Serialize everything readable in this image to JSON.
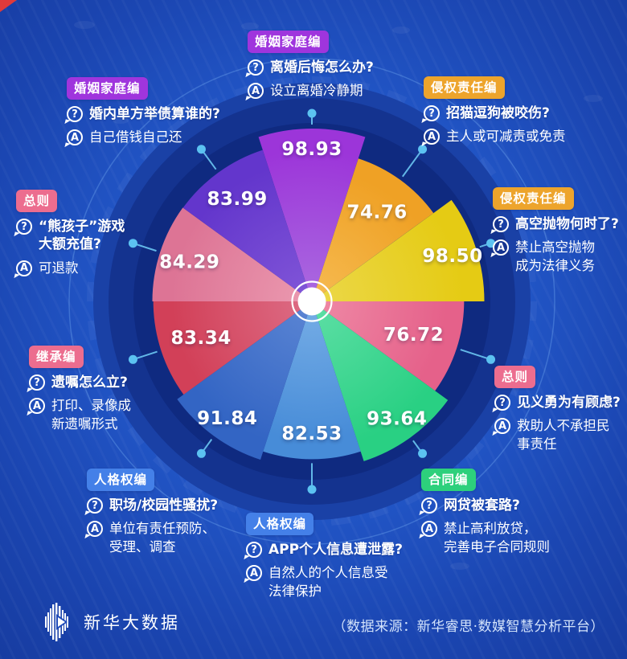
{
  "icons": {
    "question_glyph": "?",
    "answer_glyph": "A"
  },
  "footer": {
    "brand": "新华大数据",
    "source_note": "（数据来源：新华睿思·数媒智慧分析平台）"
  },
  "chart_data": {
    "type": "rose",
    "note": "Nightingale rose chart, 10 equal 36-degree sectors, radius proportional to sqrt(value), first sector centered at 12 o'clock, clockwise",
    "sectors": [
      {
        "value": 98.93,
        "category": "婚姻家庭编",
        "category_color": "#9f35dd",
        "question": "离婚后悔怎么办?",
        "answer": "设立离婚冷静期",
        "color": "#9c35d9",
        "color_inner": "#aa6be0"
      },
      {
        "value": 74.76,
        "category": "侵权责任编",
        "category_color": "#eda42c",
        "question": "招猫逗狗被咬伤?",
        "answer": "主人或可减责或免责",
        "color": "#efa125",
        "color_inner": "#f6bb52"
      },
      {
        "value": 98.5,
        "category": "侵权责任编",
        "category_color": "#eda42c",
        "question": "高空抛物何时了?",
        "answer": "禁止高空抛物\n成为法律义务",
        "color": "#e5cb14",
        "color_inner": "#ecd84a"
      },
      {
        "value": 76.72,
        "category": "总则",
        "category_color": "#ec6d8f",
        "question": "见义勇为有顾虑?",
        "answer": "救助人不承担民\n事责任",
        "color": "#e5618a",
        "color_inner": "#ef8aa6"
      },
      {
        "value": 93.64,
        "category": "合同编",
        "category_color": "#2dd07c",
        "question": "网贷被套路?",
        "answer": "禁止高利放贷，\n完善电子合同规则",
        "color": "#29d083",
        "color_inner": "#5fdfa6"
      },
      {
        "value": 82.53,
        "category": "人格权编",
        "category_color": "#4480e8",
        "question": "APP个人信息遭泄露?",
        "answer": "自然人的个人信息受\n法律保护",
        "color": "#478cd8",
        "color_inner": "#77aee6"
      },
      {
        "value": 91.84,
        "category": "人格权编",
        "category_color": "#4480e8",
        "question": "职场/校园性骚扰?",
        "answer": "单位有责任预防、\n受理、调查",
        "color": "#3365c4",
        "color_inner": "#5c86d4"
      },
      {
        "value": 83.34,
        "category": "继承编",
        "category_color": "#ec6d8f",
        "question": "遗嘱怎么立?",
        "answer": "打印、录像成\n新遗嘱形式",
        "color": "#d24058",
        "color_inner": "#dd6d86"
      },
      {
        "value": 84.29,
        "category": "总则",
        "category_color": "#ec6d8f",
        "question": "“熊孩子”游戏\n大额充值?",
        "answer": "可退款",
        "color": "#dd7495",
        "color_inner": "#eb9ab0"
      },
      {
        "value": 83.99,
        "category": "婚姻家庭编",
        "category_color": "#9f35dd",
        "question": "婚内单方举债算谁的?",
        "answer": "自己借钱自己还",
        "color": "#6336cc",
        "color_inner": "#8257d8"
      }
    ]
  }
}
